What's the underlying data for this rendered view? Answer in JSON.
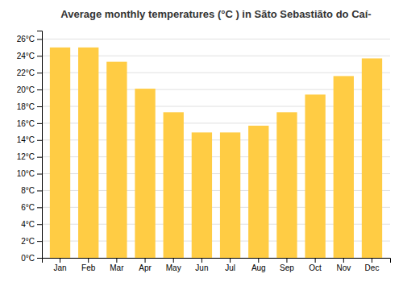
{
  "chart_data": {
    "type": "bar",
    "title": "Average monthly temperatures (°C ) in Sãto Sebastiãto do Caí-",
    "categories": [
      "Jan",
      "Feb",
      "Mar",
      "Apr",
      "May",
      "Jun",
      "Jul",
      "Aug",
      "Sep",
      "Oct",
      "Nov",
      "Dec"
    ],
    "values": [
      25.0,
      25.0,
      23.3,
      20.1,
      17.3,
      14.9,
      14.9,
      15.7,
      17.3,
      19.4,
      21.6,
      23.7
    ],
    "color": "#FFCC44",
    "ylim": [
      0,
      27
    ],
    "yticks": [
      {
        "value": 0,
        "label": "0°C"
      },
      {
        "value": 2,
        "label": "2°C"
      },
      {
        "value": 4,
        "label": "4°C"
      },
      {
        "value": 6,
        "label": "6°C"
      },
      {
        "value": 8,
        "label": "8°C"
      },
      {
        "value": 10,
        "label": "10°C"
      },
      {
        "value": 12,
        "label": "12°C"
      },
      {
        "value": 14,
        "label": "14°C"
      },
      {
        "value": 16,
        "label": "16°C"
      },
      {
        "value": 18,
        "label": "18°C"
      },
      {
        "value": 20,
        "label": "20°C"
      },
      {
        "value": 22,
        "label": "22°C"
      },
      {
        "value": 24,
        "label": "24°C"
      },
      {
        "value": 26,
        "label": "26°C"
      }
    ],
    "grid": true
  }
}
